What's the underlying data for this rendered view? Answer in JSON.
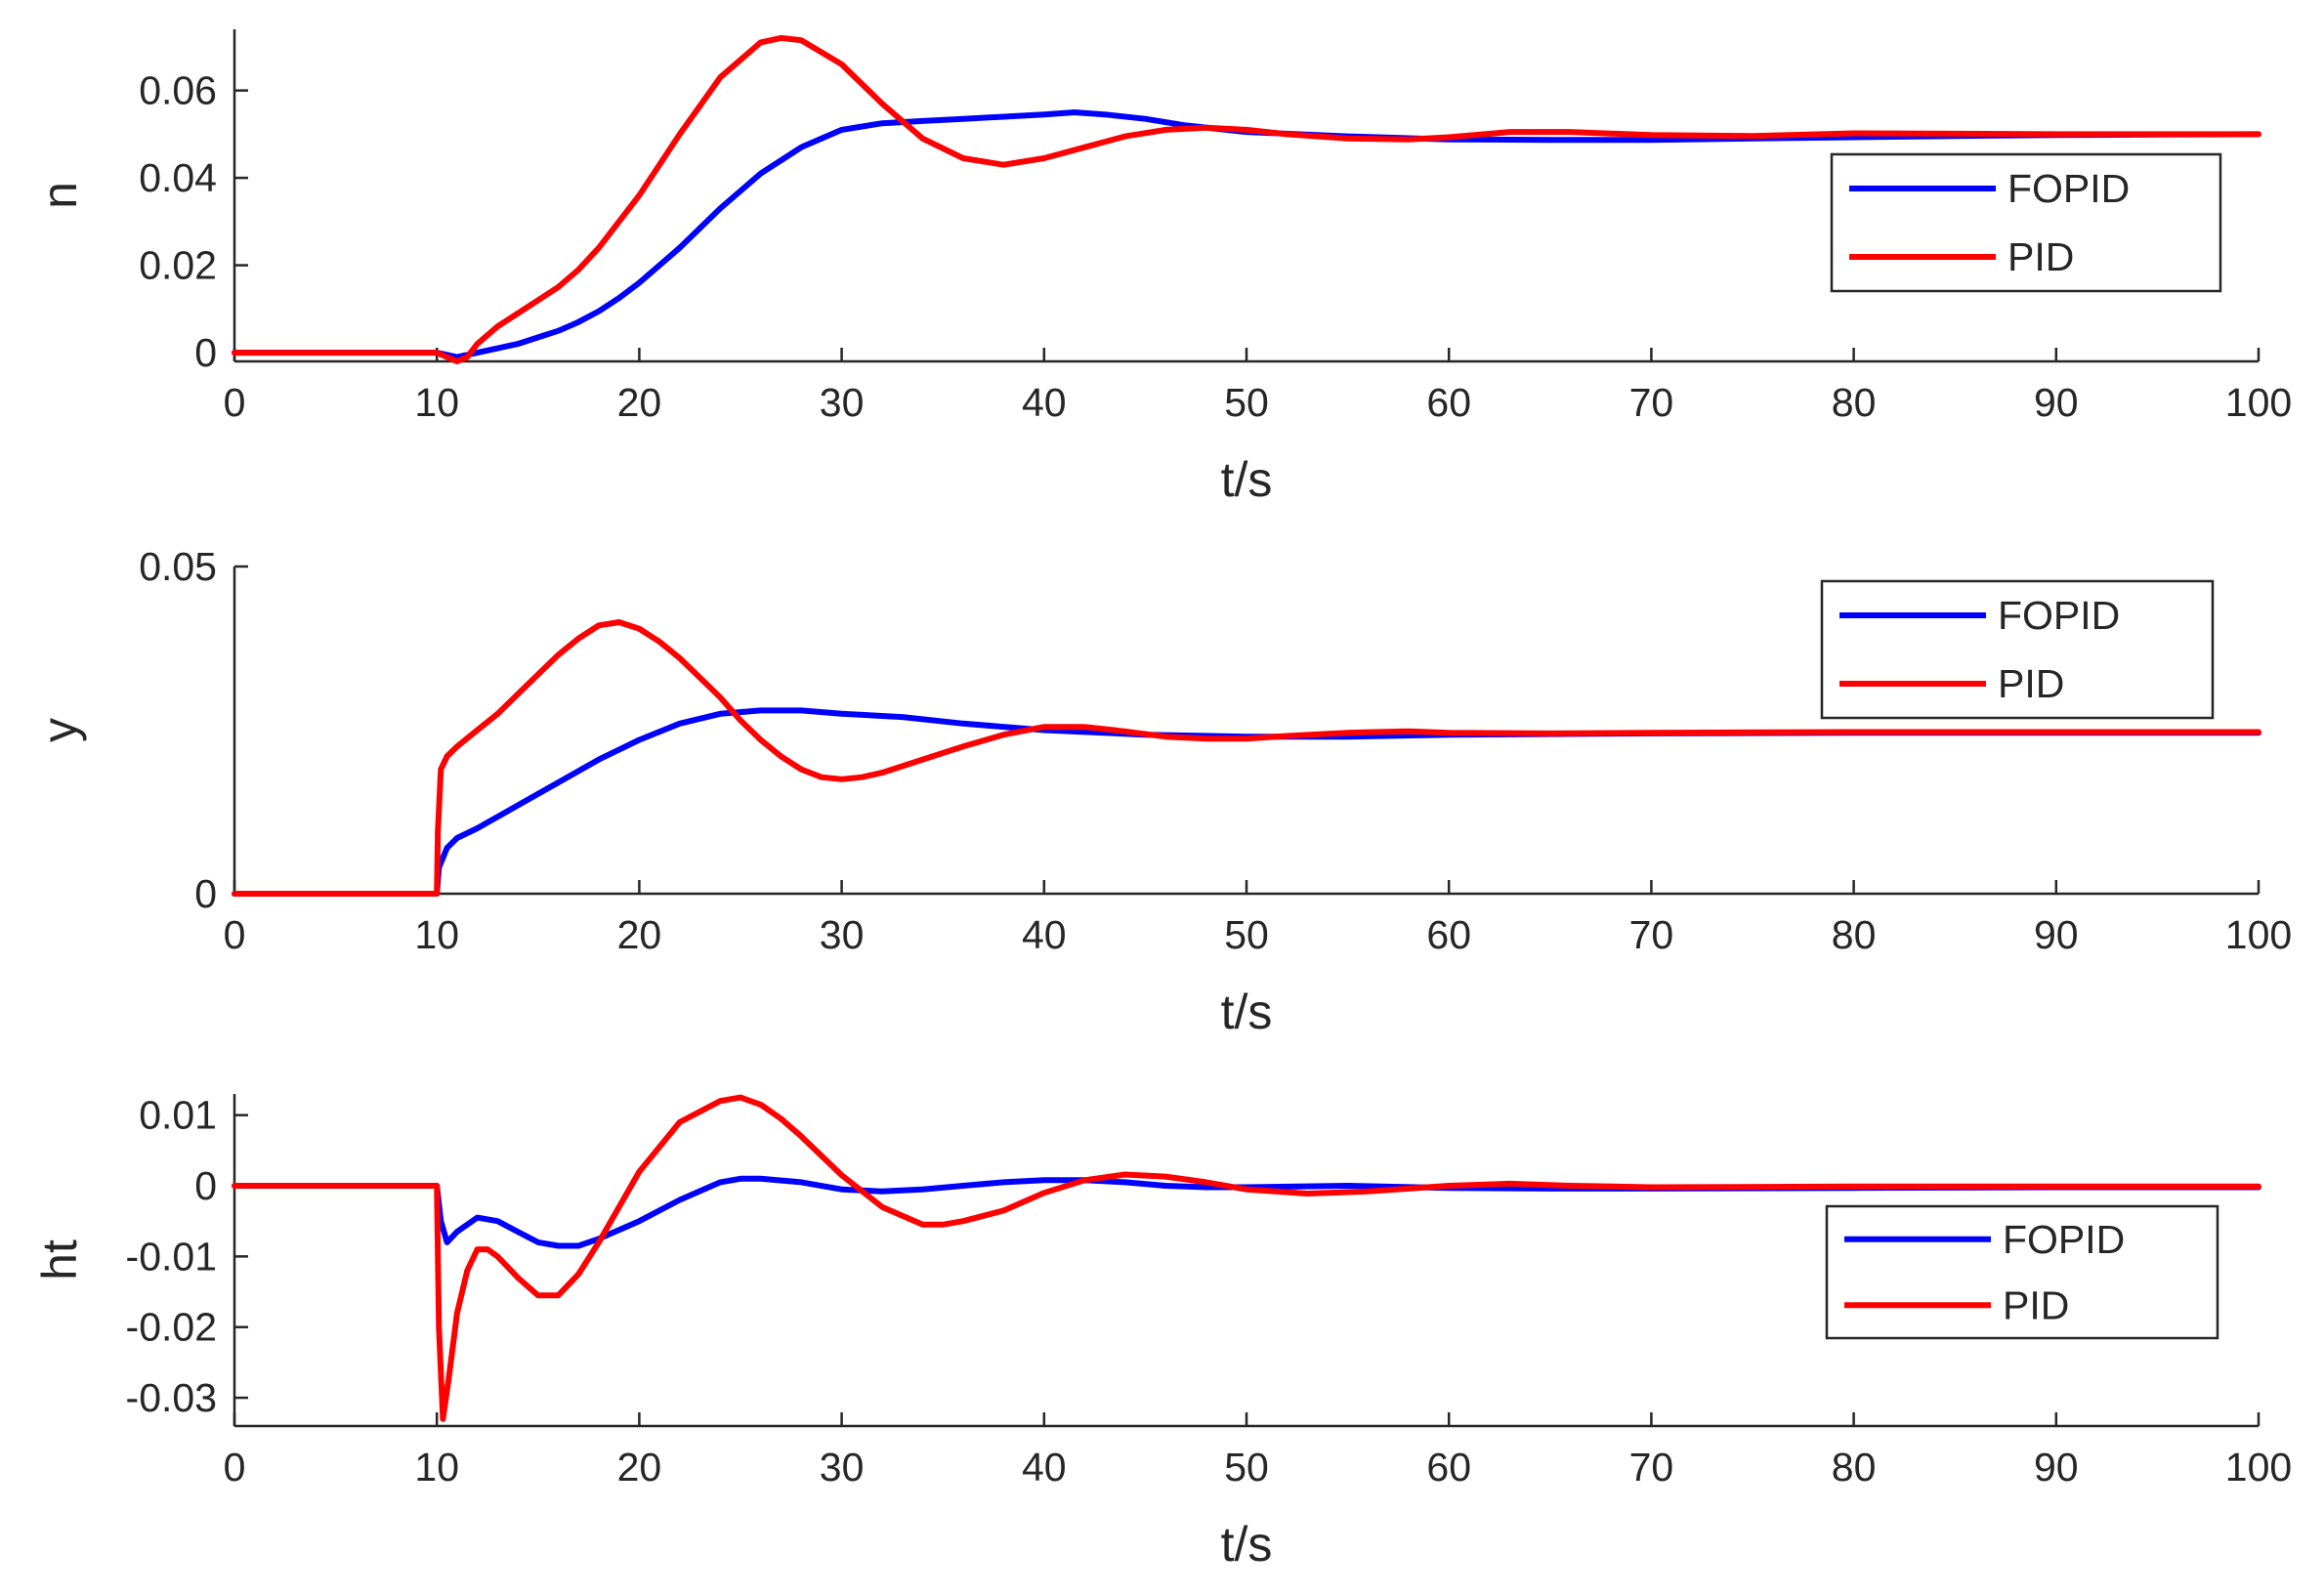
{
  "chart_data": [
    {
      "type": "line",
      "xlabel": "t/s",
      "ylabel": "n",
      "xlim": [
        0,
        100
      ],
      "ylim": [
        -0.002,
        0.074
      ],
      "xticks": [
        0,
        10,
        20,
        30,
        40,
        50,
        60,
        70,
        80,
        90,
        100
      ],
      "yticks": [
        0,
        0.02,
        0.04,
        0.06
      ],
      "ytick_labels": [
        "0",
        "0.02",
        "0.04",
        "0.06"
      ],
      "legend": "right-middle",
      "grid": false,
      "series": [
        {
          "name": "FOPID",
          "color": "#0000ff",
          "x": [
            0,
            10,
            10.5,
            11,
            12,
            13,
            14,
            15,
            16,
            17,
            18,
            19,
            20,
            22,
            24,
            26,
            28,
            30,
            32,
            34,
            36,
            38,
            40,
            41.5,
            43,
            45,
            47,
            50,
            55,
            60,
            65,
            70,
            75,
            80,
            85,
            90,
            95,
            100
          ],
          "y": [
            0,
            0,
            -0.0005,
            -0.001,
            0,
            0.001,
            0.002,
            0.0035,
            0.005,
            0.007,
            0.0095,
            0.0125,
            0.016,
            0.024,
            0.033,
            0.041,
            0.047,
            0.051,
            0.0525,
            0.053,
            0.0535,
            0.054,
            0.0545,
            0.055,
            0.0545,
            0.0535,
            0.052,
            0.0505,
            0.0495,
            0.0488,
            0.0487,
            0.0487,
            0.049,
            0.0493,
            0.0496,
            0.0498,
            0.0499,
            0.05
          ]
        },
        {
          "name": "PID",
          "color": "#ff0000",
          "x": [
            0,
            10,
            10.5,
            11,
            11.5,
            12,
            13,
            14,
            15,
            16,
            17,
            18,
            19,
            20,
            22,
            24,
            26,
            27,
            28,
            30,
            32,
            34,
            36,
            38,
            40,
            42,
            44,
            46,
            48,
            50,
            52,
            55,
            58,
            60,
            63,
            66,
            70,
            75,
            80,
            85,
            90,
            100
          ],
          "y": [
            0,
            0,
            -0.001,
            -0.002,
            -0.001,
            0.002,
            0.006,
            0.009,
            0.012,
            0.015,
            0.019,
            0.024,
            0.03,
            0.036,
            0.05,
            0.063,
            0.071,
            0.072,
            0.0715,
            0.066,
            0.057,
            0.049,
            0.0445,
            0.043,
            0.0445,
            0.047,
            0.0495,
            0.051,
            0.0515,
            0.051,
            0.05,
            0.049,
            0.0488,
            0.0493,
            0.0505,
            0.0505,
            0.0498,
            0.0496,
            0.0502,
            0.0501,
            0.05,
            0.05
          ]
        }
      ]
    },
    {
      "type": "line",
      "xlabel": "t/s",
      "ylabel": "y",
      "xlim": [
        0,
        100
      ],
      "ylim": [
        0,
        0.05
      ],
      "xticks": [
        0,
        10,
        20,
        30,
        40,
        50,
        60,
        70,
        80,
        90,
        100
      ],
      "yticks": [
        0,
        0.05
      ],
      "ytick_labels": [
        "0",
        "0.05"
      ],
      "legend": "top-right",
      "grid": false,
      "series": [
        {
          "name": "FOPID",
          "color": "#0000ff",
          "x": [
            0,
            10,
            10.1,
            10.5,
            11,
            12,
            14,
            16,
            18,
            20,
            22,
            24,
            26,
            28,
            30,
            33,
            36,
            40,
            45,
            50,
            55,
            60,
            70,
            80,
            90,
            100
          ],
          "y": [
            0,
            0,
            0.004,
            0.007,
            0.0085,
            0.01,
            0.0135,
            0.017,
            0.0205,
            0.0235,
            0.026,
            0.0275,
            0.028,
            0.028,
            0.0275,
            0.027,
            0.026,
            0.025,
            0.0243,
            0.024,
            0.024,
            0.0243,
            0.0245,
            0.0246,
            0.0246,
            0.0246
          ]
        },
        {
          "name": "PID",
          "color": "#ff0000",
          "x": [
            0,
            10,
            10.05,
            10.2,
            10.5,
            11,
            12,
            13,
            14,
            15,
            16,
            17,
            18,
            19,
            20,
            21,
            22,
            23,
            24,
            25,
            26,
            27,
            28,
            29,
            30,
            31,
            32,
            34,
            36,
            38,
            40,
            42,
            44,
            46,
            48,
            50,
            52,
            55,
            58,
            60,
            65,
            70,
            80,
            90,
            100
          ],
          "y": [
            0,
            0,
            0.0095,
            0.019,
            0.021,
            0.0225,
            0.025,
            0.0275,
            0.0305,
            0.0335,
            0.0365,
            0.039,
            0.041,
            0.0415,
            0.0405,
            0.0385,
            0.036,
            0.033,
            0.03,
            0.0265,
            0.0235,
            0.021,
            0.019,
            0.0178,
            0.0175,
            0.0178,
            0.0185,
            0.0205,
            0.0225,
            0.0243,
            0.0255,
            0.0255,
            0.0248,
            0.024,
            0.0237,
            0.0237,
            0.0241,
            0.0246,
            0.0248,
            0.0246,
            0.0245,
            0.0246,
            0.0247,
            0.0247,
            0.0247
          ]
        }
      ]
    },
    {
      "type": "line",
      "xlabel": "t/s",
      "ylabel": "ht",
      "xlim": [
        0,
        100
      ],
      "ylim": [
        -0.034,
        0.013
      ],
      "xticks": [
        0,
        10,
        20,
        30,
        40,
        50,
        60,
        70,
        80,
        90,
        100
      ],
      "yticks": [
        -0.03,
        -0.02,
        -0.01,
        0,
        0.01
      ],
      "ytick_labels": [
        "-0.03",
        "-0.02",
        "-0.01",
        "0",
        "0.01"
      ],
      "legend": "right-middle",
      "grid": false,
      "series": [
        {
          "name": "FOPID",
          "color": "#0000ff",
          "x": [
            0,
            10,
            10.2,
            10.5,
            11,
            12,
            13,
            14,
            15,
            16,
            17,
            18,
            20,
            22,
            24,
            25,
            26,
            28,
            30,
            32,
            34,
            36,
            38,
            40,
            42,
            44,
            46,
            48,
            50,
            55,
            60,
            65,
            70,
            80,
            90,
            100
          ],
          "y": [
            0,
            0,
            -0.005,
            -0.008,
            -0.0065,
            -0.0045,
            -0.005,
            -0.0065,
            -0.008,
            -0.0085,
            -0.0085,
            -0.0075,
            -0.005,
            -0.002,
            0.0005,
            0.001,
            0.001,
            0.0005,
            -0.0005,
            -0.0008,
            -0.0005,
            0,
            0.0005,
            0.0008,
            0.0008,
            0.0005,
            0,
            -0.0002,
            -0.0002,
            0,
            -0.0003,
            -0.0004,
            -0.0004,
            -0.0003,
            -0.0002,
            -0.0002
          ]
        },
        {
          "name": "PID",
          "color": "#ff0000",
          "x": [
            0,
            10,
            10.1,
            10.3,
            10.6,
            11,
            11.5,
            12,
            12.5,
            13,
            14,
            15,
            16,
            17,
            18,
            20,
            22,
            24,
            25,
            26,
            27,
            28,
            30,
            32,
            34,
            35,
            36,
            38,
            40,
            42,
            44,
            46,
            48,
            50,
            53,
            56,
            60,
            63,
            66,
            70,
            80,
            100
          ],
          "y": [
            0,
            0,
            -0.02,
            -0.033,
            -0.027,
            -0.018,
            -0.012,
            -0.009,
            -0.009,
            -0.01,
            -0.013,
            -0.0155,
            -0.0155,
            -0.0125,
            -0.008,
            0.002,
            0.009,
            0.012,
            0.0125,
            0.0115,
            0.0095,
            0.007,
            0.0015,
            -0.003,
            -0.0055,
            -0.0055,
            -0.005,
            -0.0035,
            -0.001,
            0.0008,
            0.0016,
            0.0013,
            0.0005,
            -0.0005,
            -0.0011,
            -0.0008,
            0,
            0.0003,
            0,
            -0.0002,
            -0.0001,
            -0.0001
          ]
        }
      ]
    }
  ]
}
